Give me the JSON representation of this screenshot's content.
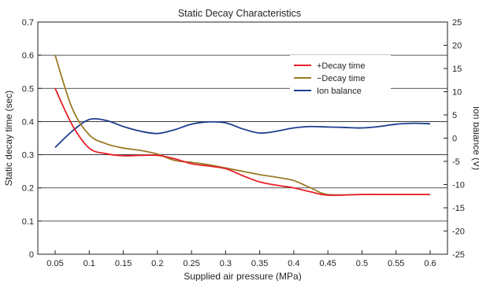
{
  "chart_data": {
    "type": "line",
    "title": "Static Decay Characteristics",
    "xlabel": "Supplied air pressure (MPa)",
    "ylabel": "Static decay time (sec)",
    "y2label": "Ion balance (V)",
    "xlim": [
      0.05,
      0.6
    ],
    "x_ticks": [
      "0.05",
      "0.1",
      "0.15",
      "0.2",
      "0.25",
      "0.3",
      "0.35",
      "0.4",
      "0.45",
      "0.5",
      "0.55",
      "0.6"
    ],
    "ylim": [
      0,
      0.7
    ],
    "y_ticks": [
      "0",
      "0.1",
      "0.2",
      "0.3",
      "0.4",
      "0.5",
      "0.6",
      "0.7"
    ],
    "y2lim": [
      -25,
      25
    ],
    "y2_ticks": [
      "-25",
      "-20",
      "-15",
      "-10",
      "-5",
      "0",
      "5",
      "10",
      "15",
      "20",
      "25"
    ],
    "grid": true,
    "legend_position": "top-right",
    "series": [
      {
        "name": "+Decay time",
        "axis": "left",
        "color": "#e8202a",
        "x": [
          0.05,
          0.075,
          0.1,
          0.125,
          0.15,
          0.175,
          0.2,
          0.225,
          0.25,
          0.275,
          0.3,
          0.325,
          0.35,
          0.375,
          0.4,
          0.425,
          0.45,
          0.5,
          0.55,
          0.6
        ],
        "values": [
          0.5,
          0.39,
          0.32,
          0.303,
          0.297,
          0.298,
          0.298,
          0.288,
          0.273,
          0.266,
          0.258,
          0.237,
          0.218,
          0.208,
          0.2,
          0.188,
          0.178,
          0.18,
          0.18,
          0.18
        ]
      },
      {
        "name": "−Decay time",
        "axis": "left",
        "color": "#9a7b25",
        "x": [
          0.05,
          0.075,
          0.1,
          0.125,
          0.15,
          0.175,
          0.2,
          0.225,
          0.25,
          0.275,
          0.3,
          0.325,
          0.35,
          0.375,
          0.4,
          0.425,
          0.45,
          0.5,
          0.55,
          0.6
        ],
        "values": [
          0.6,
          0.44,
          0.36,
          0.333,
          0.32,
          0.313,
          0.302,
          0.283,
          0.277,
          0.27,
          0.26,
          0.25,
          0.24,
          0.232,
          0.222,
          0.2,
          0.18,
          0.18,
          0.18,
          0.18
        ]
      },
      {
        "name": "Ion balance",
        "axis": "right",
        "color": "#1d3f8f",
        "x": [
          0.05,
          0.075,
          0.1,
          0.125,
          0.15,
          0.175,
          0.2,
          0.225,
          0.25,
          0.275,
          0.3,
          0.325,
          0.35,
          0.375,
          0.4,
          0.425,
          0.45,
          0.475,
          0.5,
          0.525,
          0.55,
          0.575,
          0.6
        ],
        "values": [
          -2,
          1.5,
          4,
          3.8,
          2.5,
          1.5,
          1,
          1.8,
          3,
          3.5,
          3.3,
          2,
          1.1,
          1.5,
          2.2,
          2.5,
          2.4,
          2.3,
          2.2,
          2.5,
          3,
          3.2,
          3.1
        ]
      }
    ]
  }
}
